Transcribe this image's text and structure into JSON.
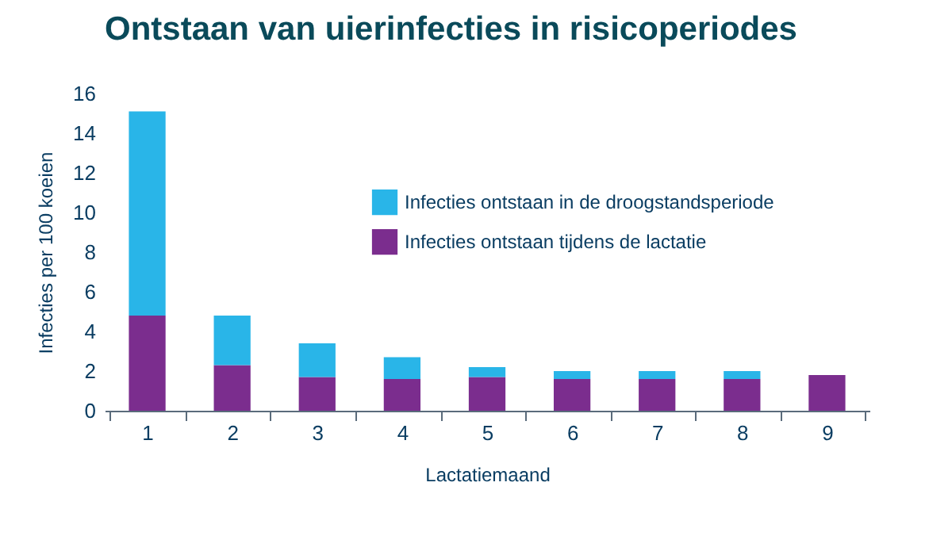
{
  "chart_data": {
    "type": "bar",
    "title": "Ontstaan van uierinfecties in risicoperiodes",
    "xlabel": "Lactatiemaand",
    "ylabel": "Infecties per 100 koeien",
    "categories": [
      "1",
      "2",
      "3",
      "4",
      "5",
      "6",
      "7",
      "8",
      "9"
    ],
    "stacked": true,
    "series": [
      {
        "name": "Infecties ontstaan tijdens de lactatie",
        "color": "#7b2d8e",
        "values": [
          4.8,
          2.3,
          1.7,
          1.6,
          1.7,
          1.6,
          1.6,
          1.6,
          1.8
        ]
      },
      {
        "name": "Infecties ontstaan in de droogstandsperiode",
        "color": "#29b5e8",
        "values": [
          10.3,
          2.5,
          1.7,
          1.1,
          0.5,
          0.4,
          0.4,
          0.4,
          0
        ]
      }
    ],
    "ylim": [
      0,
      16
    ],
    "yticks": [
      0,
      2,
      4,
      6,
      8,
      10,
      12,
      14,
      16
    ],
    "grid": false,
    "legend": "right"
  }
}
